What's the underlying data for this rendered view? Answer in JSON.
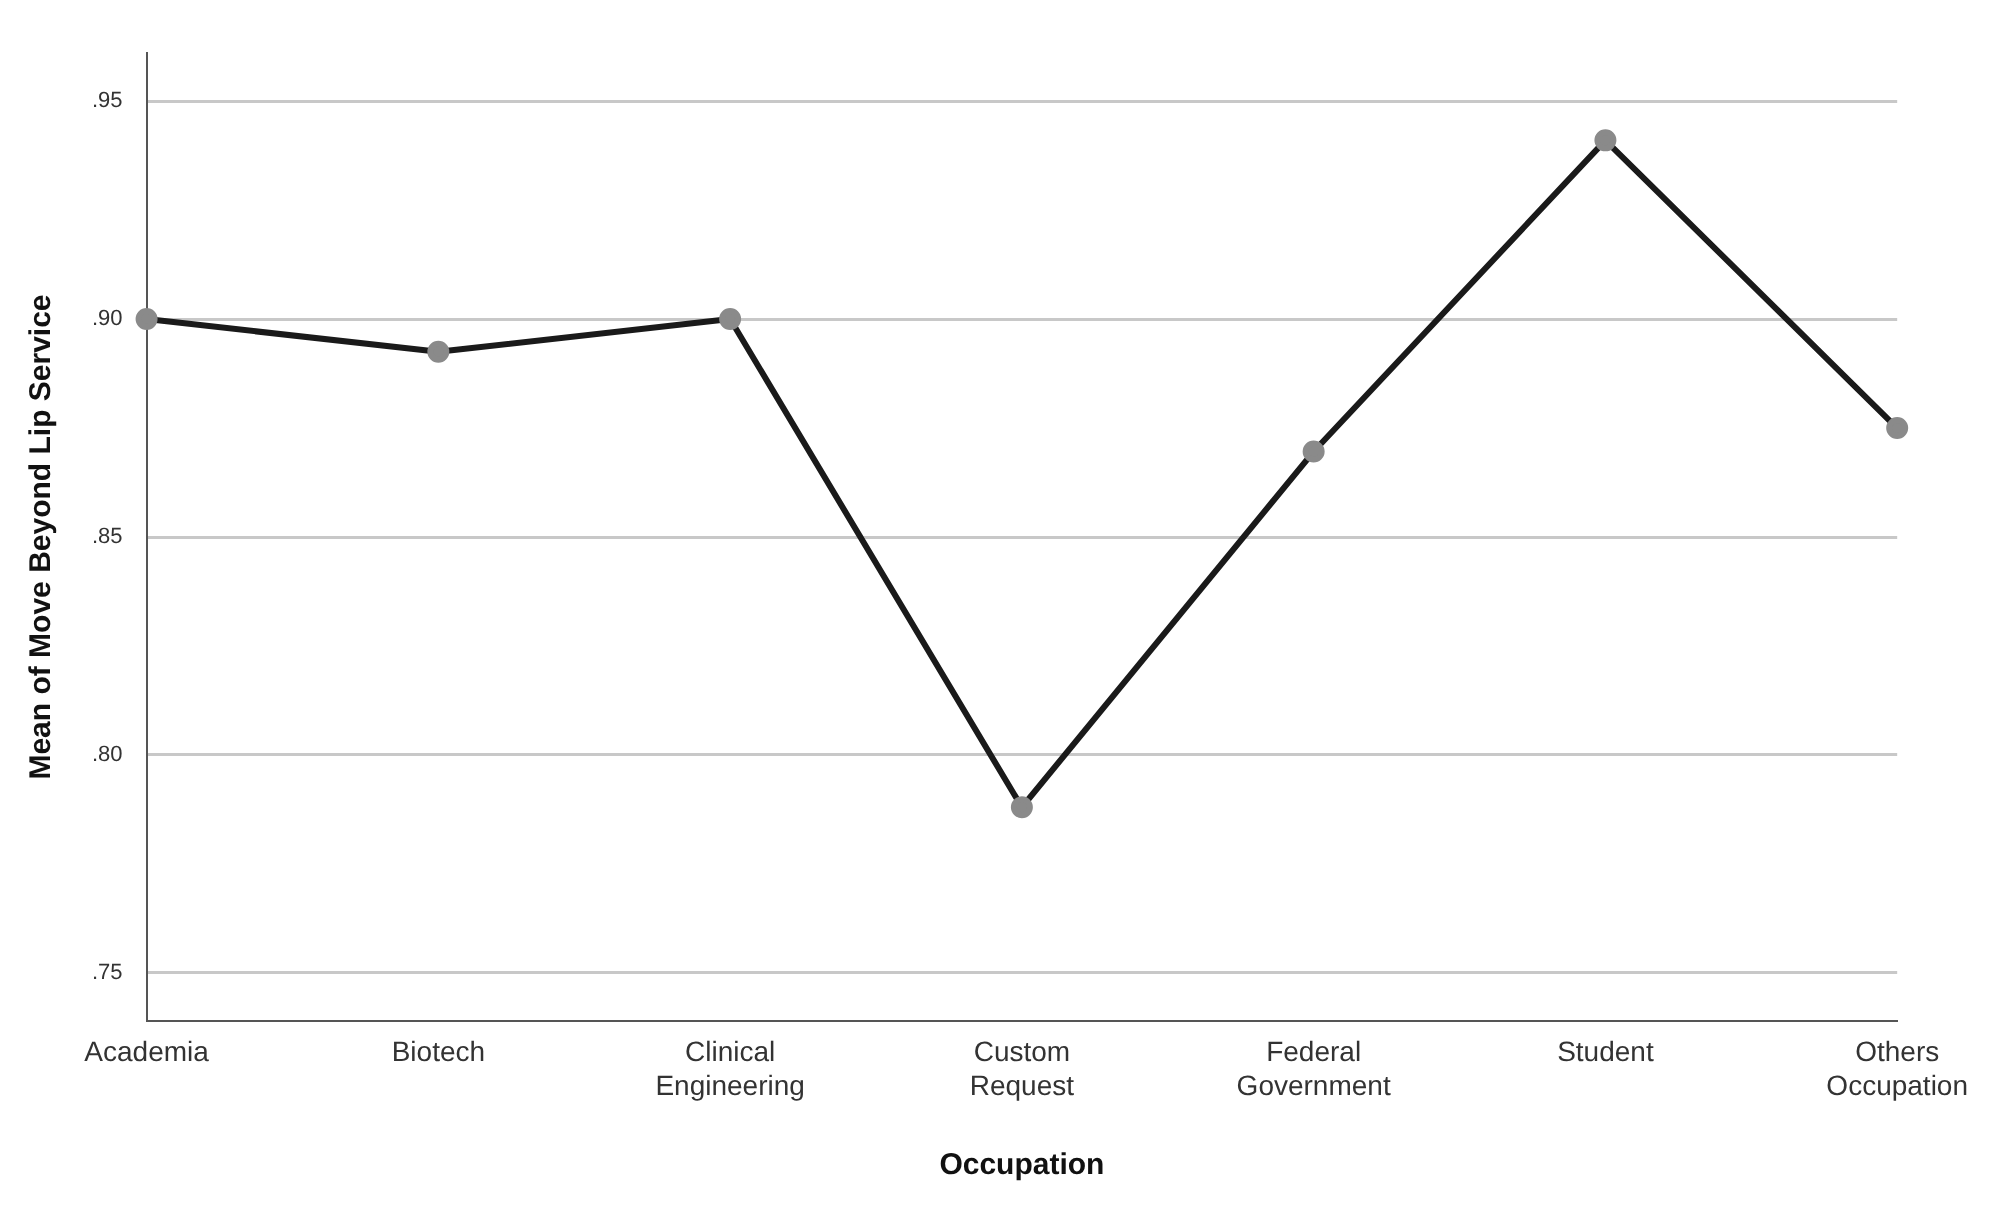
{
  "chart_data": {
    "type": "line",
    "xlabel": "Occupation",
    "ylabel": "Mean of Move Beyond Lip Service",
    "categories": [
      "Academia",
      "Biotech",
      "Clinical Engineering",
      "Custom Request",
      "Federal Government",
      "Student",
      "Others Occupation"
    ],
    "series": [
      {
        "color": "#1a1a1a",
        "values": [
          0.9,
          0.8925,
          0.9,
          0.788,
          0.8696,
          0.941,
          0.875
        ]
      }
    ],
    "ylim": [
      0.739,
      0.961
    ],
    "yticks": [
      {
        "value": 0.75,
        "label": ".75"
      },
      {
        "value": 0.8,
        "label": ".80"
      },
      {
        "value": 0.85,
        "label": ".85"
      },
      {
        "value": 0.9,
        "label": ".90"
      },
      {
        "value": 0.95,
        "label": ".95"
      }
    ],
    "grid": "y",
    "legend": false,
    "marker": "circle",
    "line_style": "solid"
  }
}
